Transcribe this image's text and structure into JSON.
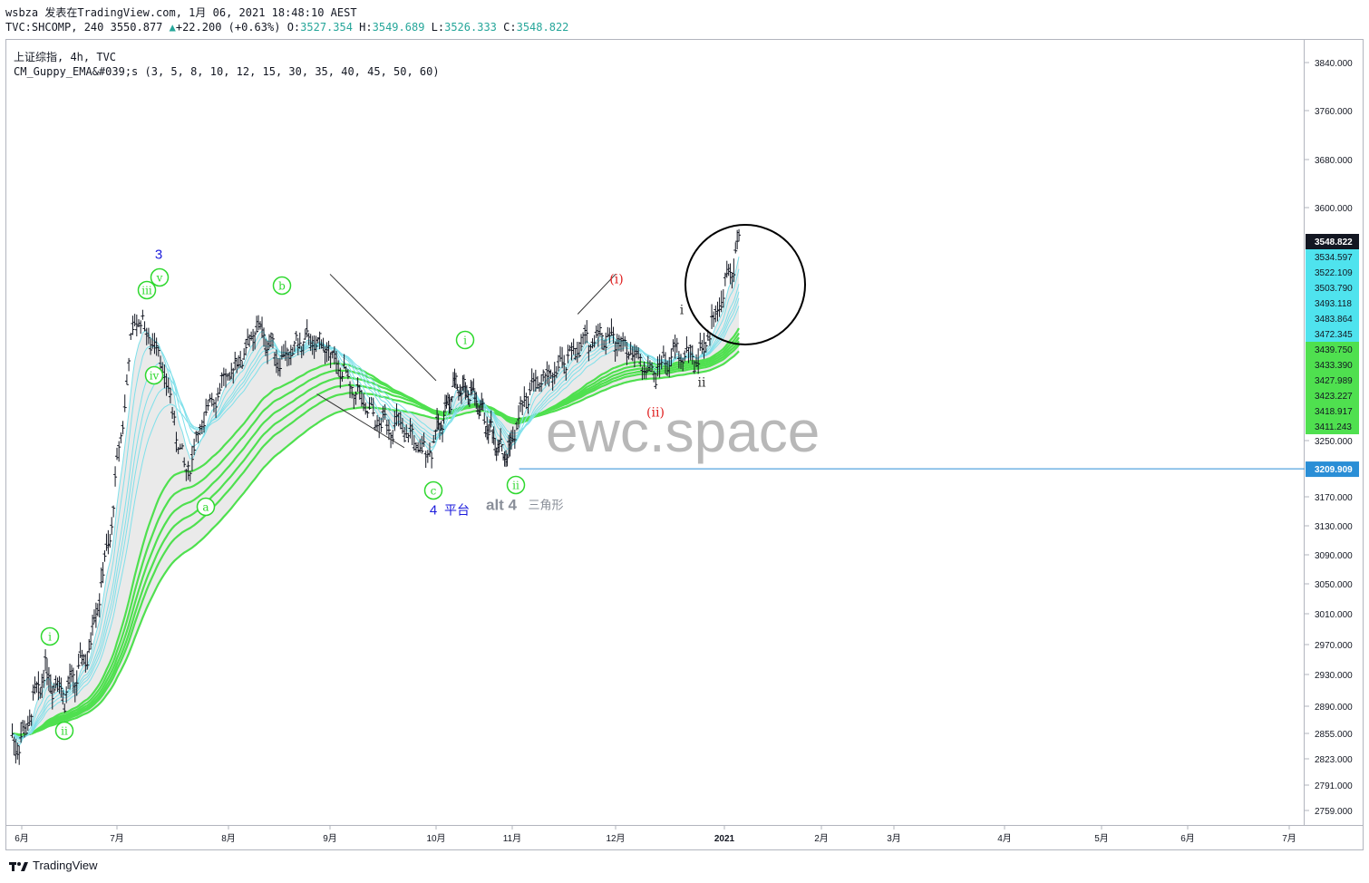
{
  "header": {
    "line1": "wsbza 发表在TradingView.com, 1月 06, 2021 18:48:10 AEST",
    "symbol": "TVC:SHCOMP, 240 3550.877",
    "change_arrow": "▲",
    "change": "+22.200 (+0.63%)",
    "o_label": "O:",
    "o_value": "3527.354",
    "h_label": "H:",
    "h_value": "3549.689",
    "l_label": "L:",
    "l_value": "3526.333",
    "c_label": "C:",
    "c_value": "3548.822"
  },
  "legend": {
    "series_title": "上证综指, 4h, TVC",
    "indicator": "CM_Guppy_EMA&#039;s (3, 5, 8, 10, 12, 15, 30, 35, 40, 45, 50, 60)"
  },
  "watermark": "ewc.space",
  "footer": {
    "brand": "TradingView"
  },
  "colors": {
    "candle": "#131722",
    "short_ema": "#7fe0ea",
    "long_ema": "#4fe04f",
    "ribbon_fill": "#dcdcdc",
    "bearish_short": "#e34b4b",
    "bearish_orange": "#f0a060",
    "neutral": "#8a8a8a",
    "label_green": "#2ed82e",
    "label_blue": "#1a1adc",
    "label_red": "#e02020",
    "support_line": "#2a8ed6",
    "last_price_bg": "#131722",
    "short_badge_bg": "#4fe3ee",
    "long_badge_bg": "#4fe04f"
  },
  "chart_data": {
    "type": "line",
    "title": "上证综指, 4h, TVC",
    "x_tick_labels": [
      "6月",
      "7月",
      "8月",
      "9月",
      "10月",
      "11月",
      "12月",
      "2021",
      "2月",
      "3月",
      "4月",
      "5月",
      "6月",
      "7月"
    ],
    "price_axis_labels": [
      "3840.000",
      "3760.000",
      "3680.000",
      "3600.000",
      "3250.000",
      "3170.000",
      "3130.000",
      "3090.000",
      "3050.000",
      "3010.000",
      "2970.000",
      "2930.000",
      "2890.000",
      "2855.000",
      "2823.000",
      "2791.000",
      "2759.000"
    ],
    "price_series": {
      "name": "TVC:SHCOMP",
      "x": [
        "2020-06-01",
        "2020-06-08",
        "2020-06-15",
        "2020-06-22",
        "2020-06-29",
        "2020-07-06",
        "2020-07-13",
        "2020-07-20",
        "2020-07-27",
        "2020-08-03",
        "2020-08-10",
        "2020-08-17",
        "2020-08-24",
        "2020-08-31",
        "2020-09-07",
        "2020-09-14",
        "2020-09-21",
        "2020-09-28",
        "2020-10-09",
        "2020-10-16",
        "2020-10-23",
        "2020-10-30",
        "2020-11-06",
        "2020-11-13",
        "2020-11-20",
        "2020-11-27",
        "2020-12-04",
        "2020-12-11",
        "2020-12-18",
        "2020-12-25",
        "2021-01-06"
      ],
      "values": [
        2845,
        2935,
        2905,
        2960,
        3120,
        3440,
        3380,
        3200,
        3310,
        3360,
        3420,
        3370,
        3400,
        3390,
        3330,
        3280,
        3270,
        3230,
        3335,
        3320,
        3265,
        3225,
        3330,
        3350,
        3390,
        3410,
        3395,
        3350,
        3380,
        3375,
        3549
      ]
    },
    "ema_ribbon_series": [
      {
        "name": "short EMAs (3, 5, 8, 10, 12, 15)"
      },
      {
        "name": "long EMAs (30, 35, 40, 45, 50, 60)"
      }
    ],
    "price_badges": [
      {
        "value": "3548.822",
        "group": "last"
      },
      {
        "value": "3534.597",
        "group": "short"
      },
      {
        "value": "3522.109",
        "group": "short"
      },
      {
        "value": "3503.790",
        "group": "short"
      },
      {
        "value": "3493.118",
        "group": "short"
      },
      {
        "value": "3483.864",
        "group": "short"
      },
      {
        "value": "3472.345",
        "group": "short"
      },
      {
        "value": "3439.750",
        "group": "long"
      },
      {
        "value": "3433.390",
        "group": "long"
      },
      {
        "value": "3427.989",
        "group": "long"
      },
      {
        "value": "3423.227",
        "group": "long"
      },
      {
        "value": "3418.917",
        "group": "long"
      },
      {
        "value": "3411.243",
        "group": "long"
      }
    ],
    "support_line": {
      "value": 3209.909,
      "label": "3209.909"
    },
    "wave_labels": [
      {
        "text": "i",
        "x": "2020-06-17",
        "style": "circle-green"
      },
      {
        "text": "ii",
        "x": "2020-06-19",
        "style": "circle-green"
      },
      {
        "text": "3",
        "x": "2020-07-14",
        "style": "blue"
      },
      {
        "text": "v",
        "x": "2020-07-14",
        "style": "circle-green"
      },
      {
        "text": "iii",
        "x": "2020-07-09",
        "style": "circle-green"
      },
      {
        "text": "iv",
        "x": "2020-07-12",
        "style": "circle-green"
      },
      {
        "text": "a",
        "x": "2020-07-27",
        "style": "circle-green"
      },
      {
        "text": "b",
        "x": "2020-08-18",
        "style": "circle-green"
      },
      {
        "text": "c",
        "x": "2020-09-30",
        "style": "circle-green"
      },
      {
        "text": "4",
        "x": "2020-09-30",
        "style": "blue"
      },
      {
        "text": "平台",
        "x": "2020-10-09",
        "style": "blue-small"
      },
      {
        "text": "i",
        "x": "2020-10-13",
        "style": "circle-green"
      },
      {
        "text": "ii",
        "x": "2020-11-02",
        "style": "circle-green"
      },
      {
        "text": "alt 4",
        "x": "2020-10-24",
        "style": "gray"
      },
      {
        "text": "三角形",
        "x": "2020-11-12",
        "style": "gray-small"
      },
      {
        "text": "(i)",
        "x": "2020-12-01",
        "style": "red"
      },
      {
        "text": "(ii)",
        "x": "2020-12-11",
        "style": "red"
      },
      {
        "text": "i",
        "x": "2020-12-20",
        "style": "black"
      },
      {
        "text": "ii",
        "x": "2020-12-24",
        "style": "black"
      }
    ]
  }
}
